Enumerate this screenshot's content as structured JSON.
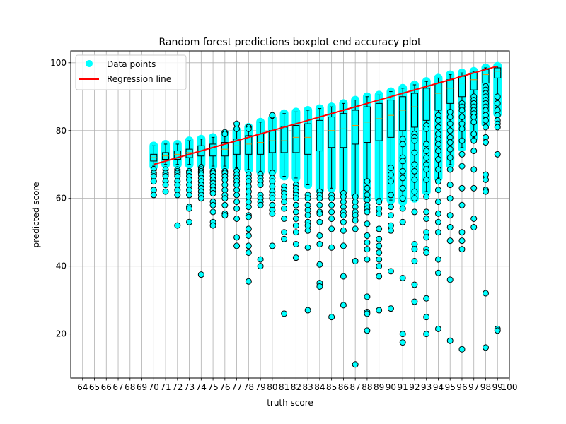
{
  "chart_data": {
    "type": "boxplot",
    "title": "Random forest predictions boxplot end accuracy plot",
    "xlabel": "truth score",
    "ylabel": "predicted score",
    "xlim": [
      63,
      100
    ],
    "ylim": [
      7,
      103.5
    ],
    "grid": true,
    "legend_position": "upper-left",
    "x_tick_labels": [
      "64",
      "65",
      "66",
      "67",
      "68",
      "69",
      "70",
      "71",
      "72",
      "73",
      "74",
      "75",
      "76",
      "77",
      "78",
      "79",
      "80",
      "81",
      "82",
      "83",
      "84",
      "85",
      "86",
      "87",
      "88",
      "89",
      "90",
      "91",
      "92",
      "93",
      "94",
      "95",
      "96",
      "97",
      "98",
      "99",
      "100"
    ],
    "y_ticks": [
      20,
      40,
      60,
      80,
      100
    ],
    "legend": [
      {
        "label": "Data points",
        "marker": "circle",
        "color": "#00ffff"
      },
      {
        "label": "Regression line",
        "marker": "line",
        "color": "#ff0000"
      }
    ],
    "regression_line": {
      "x": [
        70,
        99
      ],
      "y": [
        70,
        99
      ]
    },
    "boxes": [
      {
        "x": 70,
        "whislo": 69.5,
        "q1": 71,
        "med": 72,
        "q3": 73,
        "whishi": 75.5
      },
      {
        "x": 71,
        "whislo": 70,
        "q1": 71.5,
        "med": 72.5,
        "q3": 73.5,
        "whishi": 76
      },
      {
        "x": 72,
        "whislo": 70,
        "q1": 71.5,
        "med": 73,
        "q3": 74,
        "whishi": 76
      },
      {
        "x": 73,
        "whislo": 70,
        "q1": 72,
        "med": 73.5,
        "q3": 74.5,
        "whishi": 77
      },
      {
        "x": 74,
        "whislo": 70,
        "q1": 72.5,
        "med": 74,
        "q3": 75.5,
        "whishi": 77.5
      },
      {
        "x": 75,
        "whislo": 69.5,
        "q1": 72.5,
        "med": 74,
        "q3": 76,
        "whishi": 78
      },
      {
        "x": 76,
        "whislo": 69.5,
        "q1": 72.5,
        "med": 74.5,
        "q3": 76.5,
        "whishi": 79
      },
      {
        "x": 77,
        "whislo": 69,
        "q1": 73,
        "med": 75.5,
        "q3": 77.5,
        "whishi": 80
      },
      {
        "x": 78,
        "whislo": 68.5,
        "q1": 73,
        "med": 76,
        "q3": 78.5,
        "whishi": 81
      },
      {
        "x": 79,
        "whislo": 68,
        "q1": 73,
        "med": 76.5,
        "q3": 79,
        "whishi": 82.5
      },
      {
        "x": 80,
        "whislo": 68,
        "q1": 73.5,
        "med": 77,
        "q3": 80,
        "whishi": 83.5
      },
      {
        "x": 81,
        "whislo": 66.5,
        "q1": 73.5,
        "med": 77,
        "q3": 81,
        "whishi": 85
      },
      {
        "x": 82,
        "whislo": 66,
        "q1": 73.5,
        "med": 78,
        "q3": 81.5,
        "whishi": 85.5
      },
      {
        "x": 83,
        "whislo": 64,
        "q1": 73,
        "med": 78,
        "q3": 82,
        "whishi": 86
      },
      {
        "x": 84,
        "whislo": 62.5,
        "q1": 74,
        "med": 79,
        "q3": 83,
        "whishi": 86.5
      },
      {
        "x": 85,
        "whislo": 63,
        "q1": 75,
        "med": 80,
        "q3": 84,
        "whishi": 87
      },
      {
        "x": 86,
        "whislo": 62,
        "q1": 75,
        "med": 80.5,
        "q3": 85,
        "whishi": 88
      },
      {
        "x": 87,
        "whislo": 61,
        "q1": 76,
        "med": 81.5,
        "q3": 86,
        "whishi": 89
      },
      {
        "x": 88,
        "whislo": 60,
        "q1": 76.5,
        "med": 82.5,
        "q3": 87,
        "whishi": 90
      },
      {
        "x": 89,
        "whislo": 60,
        "q1": 77,
        "med": 83.5,
        "q3": 88,
        "whishi": 90.5
      },
      {
        "x": 90,
        "whislo": 59.5,
        "q1": 78,
        "med": 84.5,
        "q3": 89,
        "whishi": 91.5
      },
      {
        "x": 91,
        "whislo": 59,
        "q1": 80,
        "med": 86,
        "q3": 90,
        "whishi": 92.5
      },
      {
        "x": 92,
        "whislo": 60,
        "q1": 81,
        "med": 87,
        "q3": 91,
        "whishi": 93.5
      },
      {
        "x": 93,
        "whislo": 62,
        "q1": 83,
        "med": 89,
        "q3": 92.5,
        "whishi": 94.5
      },
      {
        "x": 94,
        "whislo": 66,
        "q1": 86,
        "med": 91,
        "q3": 94,
        "whishi": 95.5
      },
      {
        "x": 95,
        "whislo": 70,
        "q1": 88,
        "med": 92.5,
        "q3": 95,
        "whishi": 96.5
      },
      {
        "x": 96,
        "whislo": 75,
        "q1": 90,
        "med": 94,
        "q3": 96,
        "whishi": 97
      },
      {
        "x": 97,
        "whislo": 78,
        "q1": 92,
        "med": 95,
        "q3": 97,
        "whishi": 97.5
      },
      {
        "x": 98,
        "whislo": 82,
        "q1": 94,
        "med": 96.5,
        "q3": 98,
        "whishi": 98.5
      },
      {
        "x": 99,
        "whislo": 85,
        "q1": 95.5,
        "med": 97.5,
        "q3": 98.5,
        "whishi": 99
      }
    ],
    "fliers": [
      {
        "x": 70,
        "values": [
          68.5,
          67.5,
          67,
          66.5,
          65,
          62.5,
          61
        ]
      },
      {
        "x": 71,
        "values": [
          68.5,
          67.5,
          67,
          66.5,
          65,
          64,
          62
        ]
      },
      {
        "x": 72,
        "values": [
          68.5,
          68,
          67.5,
          67,
          66.5,
          65,
          64,
          62.5,
          61,
          52
        ]
      },
      {
        "x": 73,
        "values": [
          68,
          67.5,
          66.5,
          65.5,
          64,
          62.5,
          61,
          57.5,
          57,
          53
        ]
      },
      {
        "x": 74,
        "values": [
          69,
          68.5,
          68,
          67.5,
          67,
          66,
          65,
          64,
          63,
          62,
          61,
          60,
          37.5
        ]
      },
      {
        "x": 75,
        "values": [
          68,
          67.5,
          66.5,
          65.5,
          64.5,
          63.5,
          62.5,
          61.5,
          59,
          58,
          56,
          53,
          52
        ]
      },
      {
        "x": 76,
        "values": [
          79.5,
          79,
          68,
          67.5,
          66.5,
          65.5,
          64,
          62.5,
          61,
          60,
          58,
          55.5,
          55
        ]
      },
      {
        "x": 77,
        "values": [
          82,
          80.5,
          68,
          67,
          66,
          65,
          64,
          62.5,
          61,
          59,
          57,
          54,
          48.5,
          46
        ]
      },
      {
        "x": 78,
        "values": [
          81,
          80.5,
          67,
          66,
          65,
          63.5,
          62,
          60.5,
          59,
          57.5,
          55,
          54.5,
          51,
          49,
          46,
          44,
          35.5
        ]
      },
      {
        "x": 79,
        "values": [
          67,
          66,
          65,
          64,
          61,
          60,
          59,
          58,
          42,
          40
        ]
      },
      {
        "x": 80,
        "values": [
          84.5,
          67.5,
          66,
          65,
          63.5,
          62,
          61,
          60,
          58,
          56.5,
          55.5,
          46
        ]
      },
      {
        "x": 81,
        "values": [
          63.5,
          62.5,
          61.5,
          60.5,
          59,
          57,
          54,
          50,
          48,
          26
        ]
      },
      {
        "x": 82,
        "values": [
          64,
          63,
          62,
          61,
          60,
          58,
          56,
          54,
          52,
          50,
          46.5,
          42.5
        ]
      },
      {
        "x": 83,
        "values": [
          61,
          60,
          58,
          56.5,
          55,
          53,
          52,
          50.5,
          45.5,
          27
        ]
      },
      {
        "x": 84,
        "values": [
          62,
          61,
          60,
          58,
          56,
          55.5,
          53,
          49,
          46.5,
          40.5,
          35,
          34
        ]
      },
      {
        "x": 85,
        "values": [
          61,
          60,
          58,
          56,
          54,
          51,
          45.5,
          25
        ]
      },
      {
        "x": 86,
        "values": [
          61.5,
          60.5,
          59,
          57.5,
          56,
          55,
          53,
          50.5,
          46,
          37,
          28.5
        ]
      },
      {
        "x": 87,
        "values": [
          60.5,
          59,
          57.5,
          56,
          55,
          53.5,
          51,
          41.5,
          11
        ]
      },
      {
        "x": 88,
        "values": [
          65,
          63,
          61,
          59.5,
          58,
          57,
          56,
          52.5,
          49,
          47,
          45,
          42,
          31,
          26.5,
          26,
          21
        ]
      },
      {
        "x": 89,
        "values": [
          59,
          57,
          55.5,
          51,
          48,
          46,
          44,
          42,
          40,
          37,
          27
        ]
      },
      {
        "x": 90,
        "values": [
          69,
          67,
          65,
          61,
          57.5,
          55,
          52,
          50.5,
          38.5,
          27.5
        ]
      },
      {
        "x": 91,
        "values": [
          77.5,
          76,
          72,
          71,
          68,
          66,
          63,
          60,
          57,
          53,
          36.5,
          20,
          17.5
        ]
      },
      {
        "x": 92,
        "values": [
          79,
          78,
          77,
          73.5,
          70,
          68,
          65.5,
          62,
          60,
          56,
          46.5,
          45,
          41.5,
          34.5,
          29.5
        ]
      },
      {
        "x": 93,
        "values": [
          81.5,
          80.5,
          76,
          74,
          72,
          70,
          68.5,
          65.5,
          60.5,
          56,
          54,
          50,
          48.5,
          45,
          44,
          30.5,
          25,
          20
        ]
      },
      {
        "x": 94,
        "values": [
          84.5,
          83,
          81,
          79,
          77.5,
          76,
          74,
          71.5,
          68.5,
          65,
          62.5,
          59,
          55.5,
          53,
          50,
          42,
          38,
          21.5
        ]
      },
      {
        "x": 95,
        "values": [
          85.5,
          84,
          82,
          80,
          78,
          76.5,
          74.5,
          72,
          68.5,
          64,
          60,
          55,
          51.5,
          47.5,
          36,
          18
        ]
      },
      {
        "x": 96,
        "values": [
          88,
          87,
          86,
          84,
          82,
          80.5,
          77,
          73,
          69.5,
          63,
          58,
          50,
          47.5,
          45,
          15.5
        ]
      },
      {
        "x": 97,
        "values": [
          90,
          89,
          88,
          87,
          86,
          85,
          84,
          82.5,
          79,
          77,
          74,
          68.5,
          63,
          54,
          51.5
        ]
      },
      {
        "x": 98,
        "values": [
          93,
          92,
          91,
          90,
          89,
          88,
          87,
          86,
          84.5,
          83,
          81,
          78,
          76.5,
          67,
          65.5,
          62.5,
          62,
          32,
          16
        ]
      },
      {
        "x": 99,
        "values": [
          90,
          88,
          86,
          84.5,
          83,
          82,
          81,
          73,
          21.5,
          21
        ]
      }
    ]
  }
}
